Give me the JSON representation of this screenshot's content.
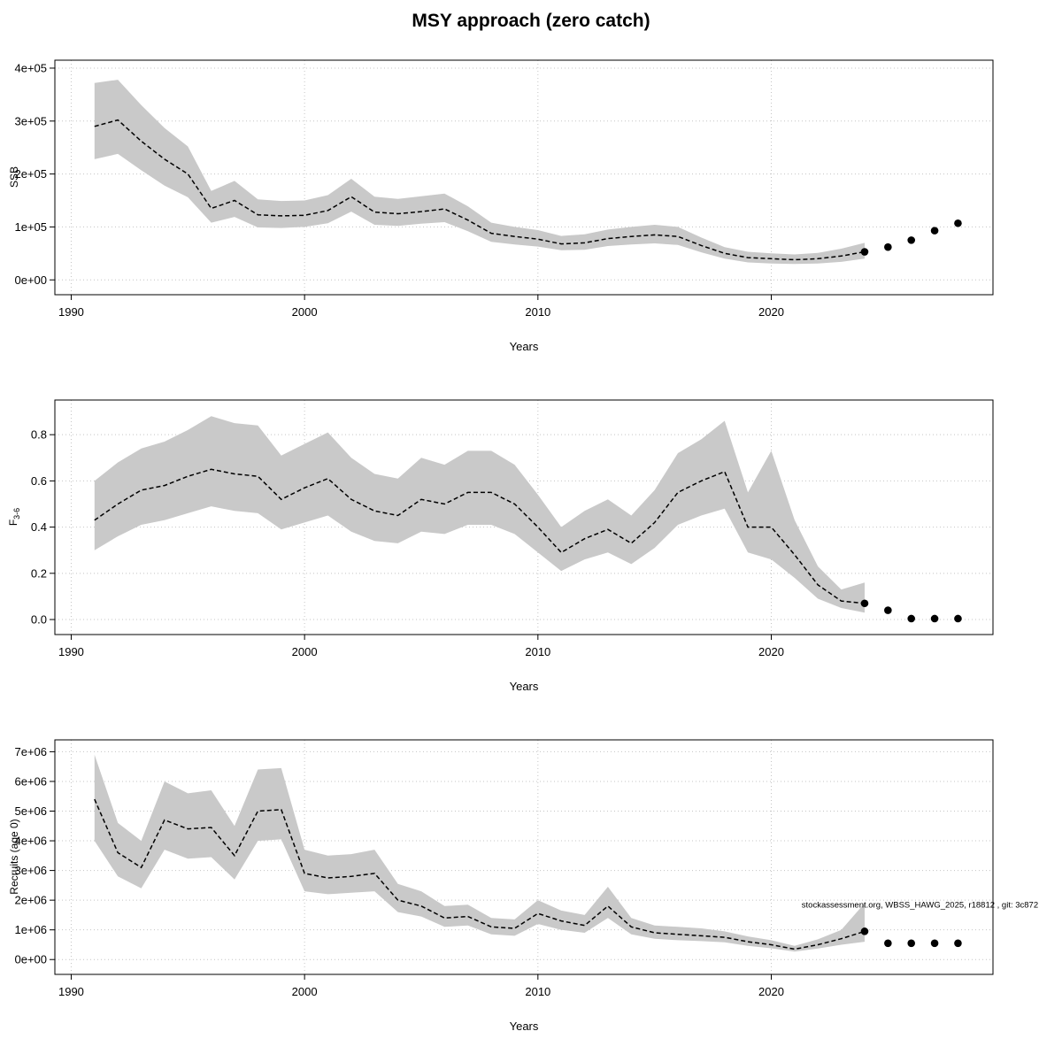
{
  "page": {
    "title": "MSY approach (zero catch)"
  },
  "annotation_credit": "stockassessment.org, WBSS_HAWG_2025, r18812 , git: 3c872",
  "chart_data": [
    {
      "type": "line",
      "name": "ssb",
      "title": "",
      "ylabel": "SSB",
      "xlabel": "Years",
      "xticks": [
        1990,
        2000,
        2010,
        2020
      ],
      "yticks": {
        "values": [
          0,
          100000,
          200000,
          300000,
          400000
        ],
        "labels": [
          "0e+00",
          "1e+05",
          "2e+05",
          "3e+05",
          "4e+05"
        ]
      },
      "xlim": [
        1989.3,
        2029.5
      ],
      "ylim": [
        -28000,
        415000
      ],
      "grid": true,
      "band_color": "#c9c9c9",
      "line_color": "#000000",
      "years": [
        1991,
        1992,
        1993,
        1994,
        1995,
        1996,
        1997,
        1998,
        1999,
        2000,
        2001,
        2002,
        2003,
        2004,
        2005,
        2006,
        2007,
        2008,
        2009,
        2010,
        2011,
        2012,
        2013,
        2014,
        2015,
        2016,
        2017,
        2018,
        2019,
        2020,
        2021,
        2022,
        2023,
        2024
      ],
      "values": [
        290000,
        302000,
        262000,
        228000,
        200000,
        135000,
        150000,
        123000,
        121000,
        122000,
        131000,
        157000,
        128000,
        125000,
        129000,
        134000,
        113000,
        88000,
        82000,
        77000,
        68000,
        70000,
        78000,
        82000,
        85000,
        82000,
        65000,
        50000,
        42000,
        40000,
        38000,
        40000,
        45000,
        53000
      ],
      "lower": [
        228000,
        238000,
        207000,
        178000,
        156000,
        108000,
        119000,
        99000,
        98000,
        100000,
        107000,
        129000,
        104000,
        102000,
        106000,
        109000,
        92000,
        72000,
        67000,
        63000,
        56000,
        57000,
        64000,
        67000,
        69000,
        66000,
        52000,
        40000,
        33000,
        31000,
        30000,
        31000,
        34000,
        40000
      ],
      "upper": [
        372000,
        378000,
        330000,
        287000,
        252000,
        168000,
        187000,
        152000,
        149000,
        150000,
        160000,
        191000,
        157000,
        153000,
        158000,
        163000,
        139000,
        108000,
        100000,
        94000,
        83000,
        86000,
        95000,
        100000,
        104000,
        100000,
        80000,
        62000,
        53000,
        50000,
        48000,
        51000,
        59000,
        70000
      ],
      "forecast": {
        "years": [
          2024,
          2025,
          2026,
          2027,
          2028
        ],
        "values": [
          53000,
          62000,
          75000,
          93000,
          107000
        ]
      }
    },
    {
      "type": "line",
      "name": "fbar",
      "title": "",
      "ylabel": {
        "main": "F",
        "sub": "3-6"
      },
      "xlabel": "Years",
      "xticks": [
        1990,
        2000,
        2010,
        2020
      ],
      "yticks": {
        "values": [
          0.0,
          0.2,
          0.4,
          0.6,
          0.8
        ],
        "labels": [
          "0.0",
          "0.2",
          "0.4",
          "0.6",
          "0.8"
        ]
      },
      "xlim": [
        1989.3,
        2029.5
      ],
      "ylim": [
        -0.065,
        0.95
      ],
      "grid": true,
      "band_color": "#c9c9c9",
      "line_color": "#000000",
      "years": [
        1991,
        1992,
        1993,
        1994,
        1995,
        1996,
        1997,
        1998,
        1999,
        2000,
        2001,
        2002,
        2003,
        2004,
        2005,
        2006,
        2007,
        2008,
        2009,
        2010,
        2011,
        2012,
        2013,
        2014,
        2015,
        2016,
        2017,
        2018,
        2019,
        2020,
        2021,
        2022,
        2023,
        2024
      ],
      "values": [
        0.43,
        0.5,
        0.56,
        0.58,
        0.62,
        0.65,
        0.63,
        0.62,
        0.52,
        0.57,
        0.61,
        0.52,
        0.47,
        0.45,
        0.52,
        0.5,
        0.55,
        0.55,
        0.5,
        0.4,
        0.29,
        0.35,
        0.39,
        0.33,
        0.42,
        0.55,
        0.6,
        0.64,
        0.4,
        0.4,
        0.28,
        0.15,
        0.08,
        0.07
      ],
      "lower": [
        0.3,
        0.36,
        0.41,
        0.43,
        0.46,
        0.49,
        0.47,
        0.46,
        0.39,
        0.42,
        0.45,
        0.38,
        0.34,
        0.33,
        0.38,
        0.37,
        0.41,
        0.41,
        0.37,
        0.29,
        0.21,
        0.26,
        0.29,
        0.24,
        0.31,
        0.41,
        0.45,
        0.48,
        0.29,
        0.26,
        0.18,
        0.09,
        0.05,
        0.03
      ],
      "upper": [
        0.6,
        0.68,
        0.74,
        0.77,
        0.82,
        0.88,
        0.85,
        0.84,
        0.71,
        0.76,
        0.81,
        0.7,
        0.63,
        0.61,
        0.7,
        0.67,
        0.73,
        0.73,
        0.67,
        0.54,
        0.4,
        0.47,
        0.52,
        0.45,
        0.56,
        0.72,
        0.78,
        0.86,
        0.55,
        0.73,
        0.43,
        0.23,
        0.13,
        0.16
      ],
      "forecast": {
        "years": [
          2024,
          2025,
          2026,
          2027,
          2028
        ],
        "values": [
          0.07,
          0.04,
          0.004,
          0.004,
          0.004
        ]
      }
    },
    {
      "type": "line",
      "name": "recruits",
      "title": "",
      "ylabel": "Recruits (age 0)",
      "xlabel": "Years",
      "xticks": [
        1990,
        2000,
        2010,
        2020
      ],
      "yticks": {
        "values": [
          0,
          1000000,
          2000000,
          3000000,
          4000000,
          5000000,
          6000000,
          7000000
        ],
        "labels": [
          "0e+00",
          "1e+06",
          "2e+06",
          "3e+06",
          "4e+06",
          "5e+06",
          "6e+06",
          "7e+06"
        ]
      },
      "xlim": [
        1989.3,
        2029.5
      ],
      "ylim": [
        -500000,
        7400000
      ],
      "grid": true,
      "band_color": "#c9c9c9",
      "line_color": "#000000",
      "years": [
        1991,
        1992,
        1993,
        1994,
        1995,
        1996,
        1997,
        1998,
        1999,
        2000,
        2001,
        2002,
        2003,
        2004,
        2005,
        2006,
        2007,
        2008,
        2009,
        2010,
        2011,
        2012,
        2013,
        2014,
        2015,
        2016,
        2017,
        2018,
        2019,
        2020,
        2021,
        2022,
        2023,
        2024
      ],
      "values": [
        5400000,
        3600000,
        3100000,
        4700000,
        4400000,
        4450000,
        3500000,
        5000000,
        5050000,
        2900000,
        2750000,
        2800000,
        2900000,
        2000000,
        1800000,
        1400000,
        1450000,
        1100000,
        1050000,
        1550000,
        1300000,
        1150000,
        1800000,
        1100000,
        900000,
        850000,
        800000,
        750000,
        600000,
        500000,
        350000,
        500000,
        700000,
        950000
      ],
      "lower": [
        4000000,
        2800000,
        2400000,
        3700000,
        3400000,
        3450000,
        2700000,
        4000000,
        4050000,
        2300000,
        2200000,
        2250000,
        2300000,
        1600000,
        1450000,
        1100000,
        1150000,
        850000,
        800000,
        1200000,
        1000000,
        900000,
        1400000,
        850000,
        700000,
        650000,
        620000,
        580000,
        460000,
        380000,
        270000,
        370000,
        500000,
        600000
      ],
      "upper": [
        6900000,
        4600000,
        4000000,
        6000000,
        5600000,
        5700000,
        4500000,
        6400000,
        6450000,
        3700000,
        3500000,
        3550000,
        3700000,
        2550000,
        2300000,
        1800000,
        1850000,
        1400000,
        1350000,
        2000000,
        1650000,
        1500000,
        2450000,
        1400000,
        1150000,
        1100000,
        1050000,
        950000,
        780000,
        650000,
        460000,
        680000,
        1000000,
        1900000
      ],
      "forecast": {
        "years": [
          2024,
          2025,
          2026,
          2027,
          2028
        ],
        "values": [
          950000,
          550000,
          550000,
          550000,
          550000
        ]
      },
      "annotation": {
        "text": "stockassessment.org, WBSS_HAWG_2025, r18812 , git: 3c872",
        "x": 2021.3,
        "y": 1750000
      }
    }
  ]
}
